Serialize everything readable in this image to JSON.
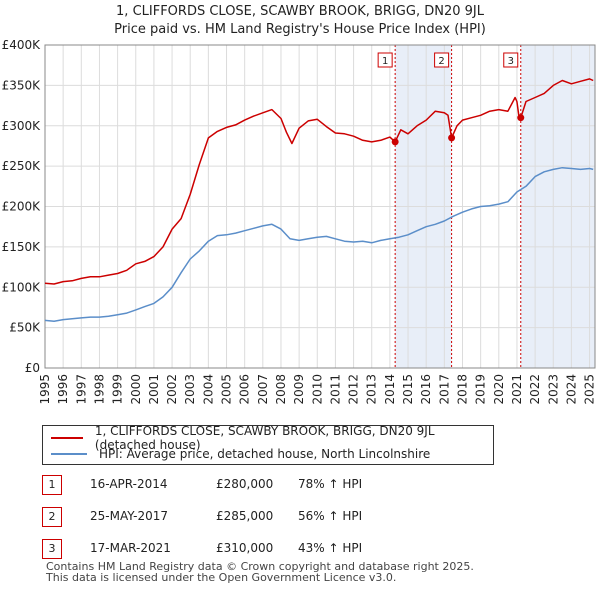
{
  "chart_data": {
    "type": "line",
    "title": "1, CLIFFORDS CLOSE, SCAWBY BROOK, BRIGG, DN20 9JL",
    "subtitle": "Price paid vs. HM Land Registry's House Price Index (HPI)",
    "xlabel": "",
    "ylabel": "",
    "xlim": [
      1995,
      2025.3
    ],
    "ylim": [
      0,
      400000
    ],
    "y_ticks": [
      0,
      50000,
      100000,
      150000,
      200000,
      250000,
      300000,
      350000,
      400000
    ],
    "y_tick_labels": [
      "£0",
      "£50K",
      "£100K",
      "£150K",
      "£200K",
      "£250K",
      "£300K",
      "£350K",
      "£400K"
    ],
    "x_ticks": [
      1995,
      1996,
      1997,
      1998,
      1999,
      2000,
      2001,
      2002,
      2003,
      2004,
      2005,
      2006,
      2007,
      2008,
      2009,
      2010,
      2011,
      2012,
      2013,
      2014,
      2015,
      2016,
      2017,
      2018,
      2019,
      2020,
      2021,
      2022,
      2023,
      2024,
      2025
    ],
    "x_tick_labels": [
      "1995",
      "1996",
      "1997",
      "1998",
      "1999",
      "2000",
      "2001",
      "2002",
      "2003",
      "2004",
      "2005",
      "2006",
      "2007",
      "2008",
      "2009",
      "2010",
      "2011",
      "2012",
      "2013",
      "2014",
      "2015",
      "2016",
      "2017",
      "2018",
      "2019",
      "2020",
      "2021",
      "2022",
      "2023",
      "2024",
      "2025"
    ],
    "grid": true,
    "series": [
      {
        "name": "1, CLIFFORDS CLOSE, SCAWBY BROOK, BRIGG, DN20 9JL (detached house)",
        "color": "#cc0000",
        "x": [
          1995,
          1995.5,
          1996,
          1996.5,
          1997,
          1997.5,
          1998,
          1998.5,
          1999,
          1999.5,
          2000,
          2000.5,
          2001,
          2001.5,
          2002,
          2002.5,
          2003,
          2003.5,
          2004,
          2004.5,
          2005,
          2005.5,
          2006,
          2006.5,
          2007,
          2007.5,
          2008,
          2008.3,
          2008.6,
          2009,
          2009.5,
          2010,
          2010.5,
          2011,
          2011.5,
          2012,
          2012.5,
          2013,
          2013.5,
          2014,
          2014.29,
          2014.6,
          2015,
          2015.5,
          2016,
          2016.5,
          2017,
          2017.2,
          2017.4,
          2017.7,
          2018,
          2018.5,
          2019,
          2019.5,
          2020,
          2020.5,
          2020.9,
          2021,
          2021.1,
          2021.21,
          2021.5,
          2022,
          2022.5,
          2023,
          2023.5,
          2024,
          2024.5,
          2025,
          2025.2
        ],
        "values": [
          105000,
          104000,
          107000,
          108000,
          111000,
          113000,
          113000,
          115000,
          117000,
          121000,
          129000,
          132000,
          138000,
          150000,
          172000,
          185000,
          215000,
          252000,
          285000,
          293000,
          298000,
          301000,
          307000,
          312000,
          316000,
          320000,
          309000,
          292000,
          278000,
          297000,
          306000,
          308000,
          299000,
          291000,
          290000,
          287000,
          282000,
          280000,
          282000,
          286000,
          280000,
          295000,
          290000,
          300000,
          307000,
          318000,
          316000,
          313000,
          285000,
          300000,
          307000,
          310000,
          313000,
          318000,
          320000,
          318000,
          335000,
          330000,
          313000,
          310000,
          330000,
          335000,
          340000,
          350000,
          356000,
          352000,
          355000,
          358000,
          356000
        ]
      },
      {
        "name": "HPI: Average price, detached house, North Lincolnshire",
        "color": "#5b8ec9",
        "x": [
          1995,
          1995.5,
          1996,
          1996.5,
          1997,
          1997.5,
          1998,
          1998.5,
          1999,
          1999.5,
          2000,
          2000.5,
          2001,
          2001.5,
          2002,
          2002.5,
          2003,
          2003.5,
          2004,
          2004.5,
          2005,
          2005.5,
          2006,
          2006.5,
          2007,
          2007.5,
          2008,
          2008.5,
          2009,
          2009.5,
          2010,
          2010.5,
          2011,
          2011.5,
          2012,
          2012.5,
          2013,
          2013.5,
          2014,
          2014.5,
          2015,
          2015.5,
          2016,
          2016.5,
          2017,
          2017.5,
          2018,
          2018.5,
          2019,
          2019.5,
          2020,
          2020.5,
          2021,
          2021.5,
          2022,
          2022.5,
          2023,
          2023.5,
          2024,
          2024.5,
          2025,
          2025.2
        ],
        "values": [
          59000,
          58000,
          60000,
          61000,
          62000,
          63000,
          63000,
          64000,
          66000,
          68000,
          72000,
          76000,
          80000,
          88000,
          100000,
          118000,
          135000,
          145000,
          157000,
          164000,
          165000,
          167000,
          170000,
          173000,
          176000,
          178000,
          172000,
          160000,
          158000,
          160000,
          162000,
          163000,
          160000,
          157000,
          156000,
          157000,
          155000,
          158000,
          160000,
          162000,
          165000,
          170000,
          175000,
          178000,
          182000,
          188000,
          193000,
          197000,
          200000,
          201000,
          203000,
          206000,
          218000,
          225000,
          237000,
          243000,
          246000,
          248000,
          247000,
          246000,
          247000,
          246000
        ]
      }
    ],
    "markers": [
      {
        "label": "1",
        "x": 2014.29,
        "y": 280000
      },
      {
        "label": "2",
        "x": 2017.4,
        "y": 285000
      },
      {
        "label": "3",
        "x": 2021.21,
        "y": 310000
      }
    ],
    "shaded_regions": [
      [
        2014.29,
        2017.4
      ],
      [
        2021.21,
        2025.3
      ]
    ],
    "legend_position": "below"
  },
  "legend": {
    "property": "1, CLIFFORDS CLOSE, SCAWBY BROOK, BRIGG, DN20 9JL (detached house)",
    "hpi": "HPI: Average price, detached house, North Lincolnshire",
    "property_color": "#cc0000",
    "hpi_color": "#5b8ec9"
  },
  "transactions": [
    {
      "num": "1",
      "date": "16-APR-2014",
      "price": "£280,000",
      "hpi": "78% ↑ HPI"
    },
    {
      "num": "2",
      "date": "25-MAY-2017",
      "price": "£285,000",
      "hpi": "56% ↑ HPI"
    },
    {
      "num": "3",
      "date": "17-MAR-2021",
      "price": "£310,000",
      "hpi": "43% ↑ HPI"
    }
  ],
  "footer": {
    "line1": "Contains HM Land Registry data © Crown copyright and database right 2025.",
    "line2": "This data is licensed under the Open Government Licence v3.0."
  }
}
